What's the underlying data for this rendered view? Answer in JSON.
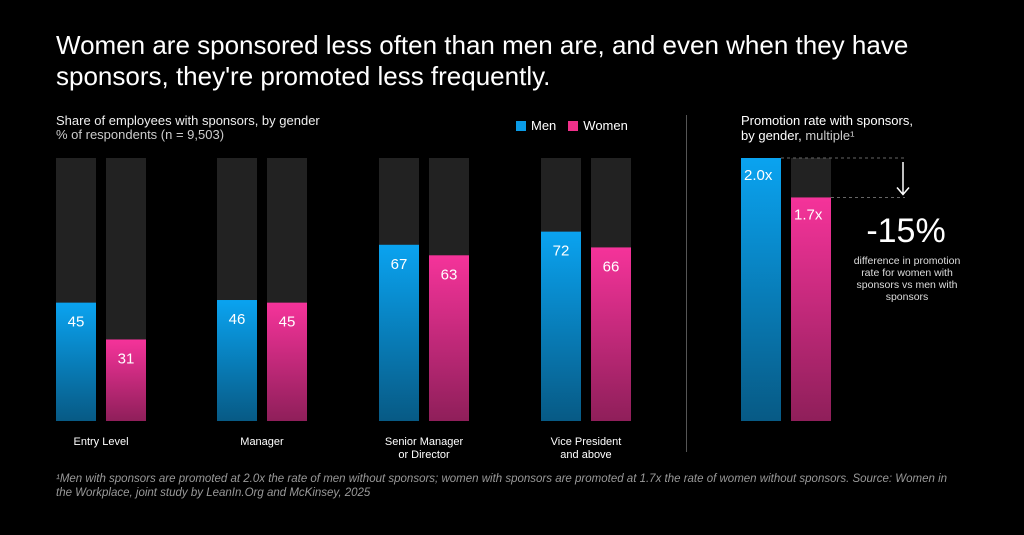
{
  "title": "Women are sponsored less often than men are, and even when they have sponsors, they're promoted less frequently.",
  "colors": {
    "men": "#0a9be6",
    "women": "#f0308a",
    "track": "#222222"
  },
  "chart_data": [
    {
      "type": "bar",
      "title": "Share of employees with sponsors, by gender",
      "subtitle": "% of respondents (n = 9,503)",
      "categories": [
        "Entry Level",
        "Manager",
        "Senior Manager or Director",
        "Vice President and above"
      ],
      "category_lines": [
        [
          "Entry Level"
        ],
        [
          "Manager"
        ],
        [
          "Senior Manager",
          "or Director"
        ],
        [
          "Vice President",
          "and above"
        ]
      ],
      "legend": [
        "Men",
        "Women"
      ],
      "legend_position": "top-right",
      "ylim": [
        0,
        100
      ],
      "series": [
        {
          "name": "Men",
          "values": [
            45,
            46,
            67,
            72
          ]
        },
        {
          "name": "Women",
          "values": [
            31,
            45,
            63,
            66
          ]
        }
      ]
    },
    {
      "type": "bar",
      "title": "Promotion rate with sponsors,",
      "title2": "by gender,",
      "title_suffix": "multiple¹",
      "categories": [
        "Men",
        "Women"
      ],
      "values": [
        2.0,
        1.7
      ],
      "labels": [
        "2.0x",
        "1.7x"
      ],
      "ylim": [
        0,
        2.0
      ],
      "annotation": {
        "value": "-15%",
        "text": "difference in promotion rate for women with sponsors vs men with sponsors"
      }
    }
  ],
  "footnote": "¹Men with sponsors are promoted at 2.0x the rate of men without sponsors; women with sponsors are promoted at 1.7x the rate of women without sponsors.  Source: Women in the Workplace, joint study by LeanIn.Org and McKinsey, 2025"
}
